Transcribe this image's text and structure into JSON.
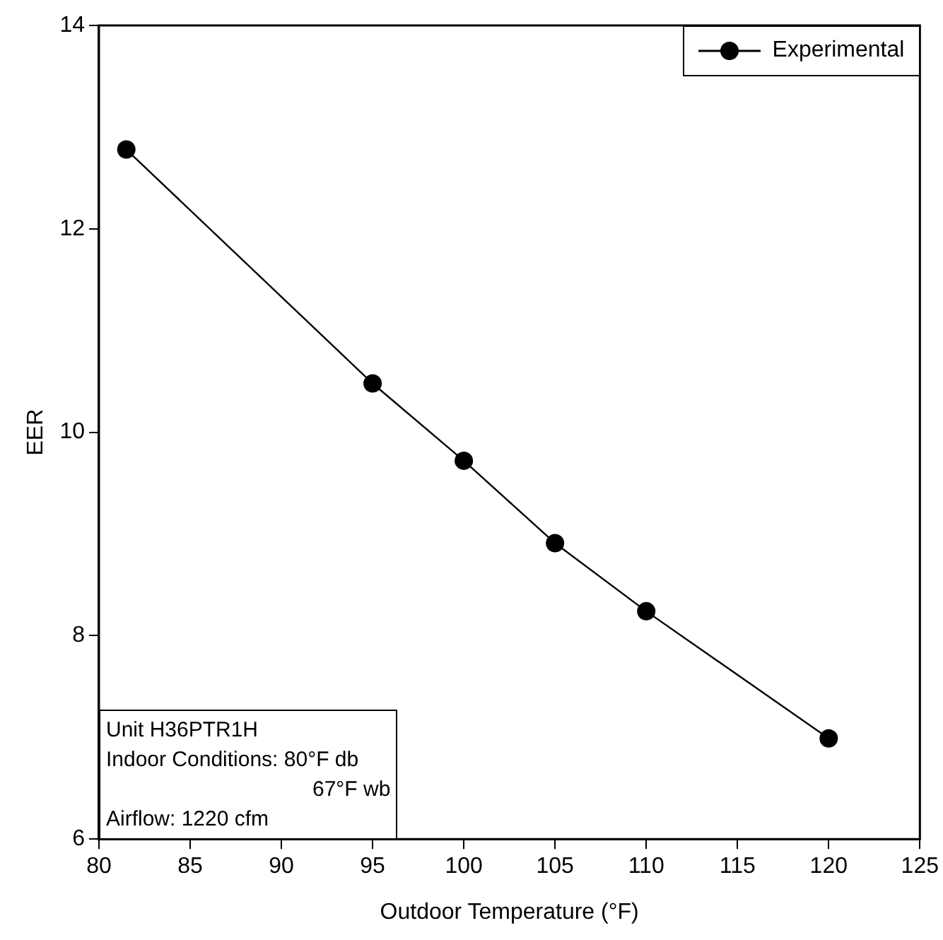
{
  "chart_data": {
    "type": "line",
    "xlabel": "Outdoor Temperature (°F)",
    "ylabel": "EER",
    "x": [
      81.5,
      95,
      100,
      105,
      110,
      120
    ],
    "series": [
      {
        "name": "Experimental",
        "color": "#000000",
        "values": [
          12.78,
          10.48,
          9.72,
          8.91,
          8.24,
          6.99
        ]
      }
    ],
    "xlim": [
      80,
      125
    ],
    "xticks": [
      80,
      85,
      90,
      95,
      100,
      105,
      110,
      115,
      120,
      125
    ],
    "ylim": [
      6,
      14
    ],
    "yticks": [
      6,
      8,
      10,
      12,
      14
    ],
    "grid": false,
    "legend": "top right",
    "marker": "circle",
    "line_style": "solid",
    "annotations": [
      "Unit H36PTR1H",
      "Indoor Conditions: 80°F db",
      "67°F wb",
      "Airflow: 1220 cfm"
    ]
  }
}
